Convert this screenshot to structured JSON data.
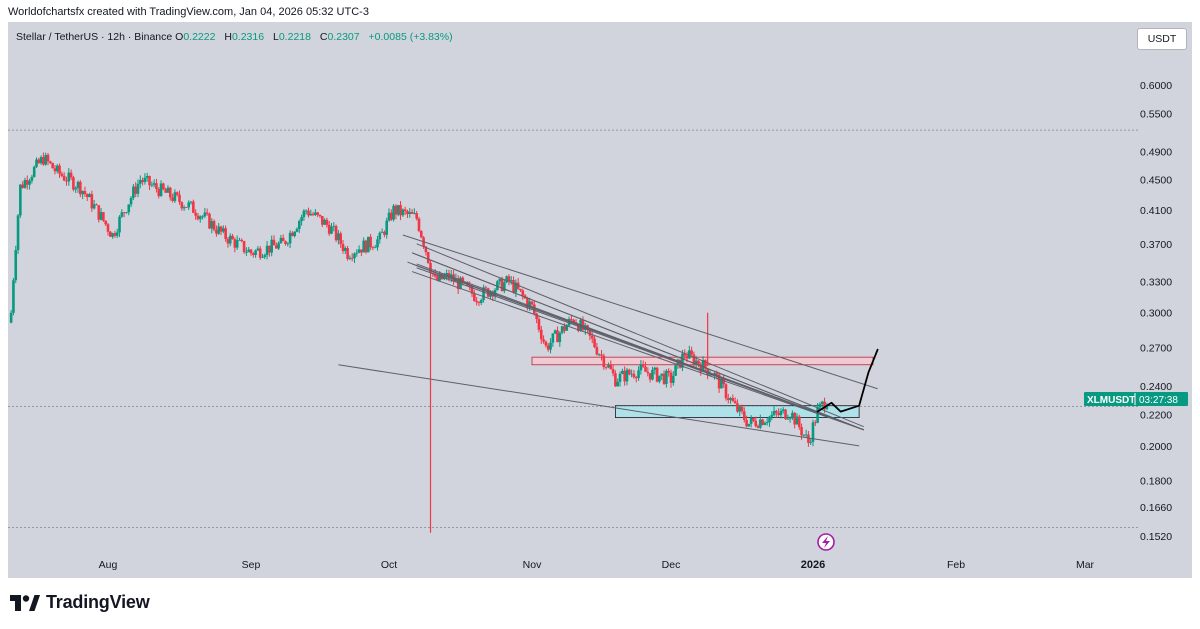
{
  "header": {
    "attribution": "Worldofchartsfx created with TradingView.com, Jan 04, 2026 05:32 UTC-3"
  },
  "legend": {
    "symbol": "Stellar / TetherUS · 12h · Binance",
    "o_label": "O",
    "o_value": "0.2222",
    "h_label": "H",
    "h_value": "0.2316",
    "l_label": "L",
    "l_value": "0.2218",
    "c_label": "C",
    "c_value": "0.2307",
    "change": "+0.0085 (+3.83%)"
  },
  "currency_button": "USDT",
  "price_label": {
    "symbol": "XLMUSDT",
    "countdown": "03:27:38",
    "value": 0.2307
  },
  "brand": {
    "name": "TradingView"
  },
  "colors": {
    "up": "#089981",
    "down": "#f23645",
    "background": "#d1d4dc",
    "line": "#5d606b",
    "zone_pink": "#f7c6cf",
    "zone_cyan": "#a6e3ec",
    "pencil": "#000000"
  },
  "chart_data": {
    "type": "candlestick",
    "y_scale": "log",
    "ylim": [
      0.148,
      0.66
    ],
    "y_ticks": [
      "0.6000",
      "0.5500",
      "0.4900",
      "0.4500",
      "0.4100",
      "0.3700",
      "0.3300",
      "0.3000",
      "0.2700",
      "0.2400",
      "0.2200",
      "0.2000",
      "0.1800",
      "0.1660",
      "0.1520"
    ],
    "x_ticks": [
      {
        "label": "Aug",
        "date": "2025-08-01"
      },
      {
        "label": "Sep",
        "date": "2025-09-01"
      },
      {
        "label": "Oct",
        "date": "2025-10-01"
      },
      {
        "label": "Nov",
        "date": "2025-11-01"
      },
      {
        "label": "Dec",
        "date": "2025-12-01"
      },
      {
        "label": "2026",
        "date": "2026-01-01",
        "bold": true
      },
      {
        "label": "Feb",
        "date": "2026-02-01"
      },
      {
        "label": "Mar",
        "date": "2026-03-01"
      }
    ],
    "start_date": "2025-07-11",
    "key_closes": [
      [
        "2025-07-11",
        0.3
      ],
      [
        "2025-07-13",
        0.44
      ],
      [
        "2025-07-18",
        0.48
      ],
      [
        "2025-07-21",
        0.46
      ],
      [
        "2025-07-26",
        0.44
      ],
      [
        "2025-08-02",
        0.38
      ],
      [
        "2025-08-08",
        0.45
      ],
      [
        "2025-08-14",
        0.43
      ],
      [
        "2025-08-20",
        0.41
      ],
      [
        "2025-08-26",
        0.38
      ],
      [
        "2025-09-01",
        0.36
      ],
      [
        "2025-09-08",
        0.37
      ],
      [
        "2025-09-13",
        0.41
      ],
      [
        "2025-09-18",
        0.39
      ],
      [
        "2025-09-22",
        0.36
      ],
      [
        "2025-09-29",
        0.375
      ],
      [
        "2025-10-02",
        0.41
      ],
      [
        "2025-10-07",
        0.4
      ],
      [
        "2025-10-10",
        0.345
      ],
      [
        "2025-10-11",
        0.33
      ],
      [
        "2025-10-14",
        0.335
      ],
      [
        "2025-10-20",
        0.315
      ],
      [
        "2025-10-27",
        0.33
      ],
      [
        "2025-11-01",
        0.305
      ],
      [
        "2025-11-04",
        0.27
      ],
      [
        "2025-11-10",
        0.295
      ],
      [
        "2025-11-14",
        0.275
      ],
      [
        "2025-11-19",
        0.245
      ],
      [
        "2025-11-24",
        0.252
      ],
      [
        "2025-12-01",
        0.245
      ],
      [
        "2025-12-04",
        0.265
      ],
      [
        "2025-12-10",
        0.25
      ],
      [
        "2025-12-15",
        0.225
      ],
      [
        "2025-12-18",
        0.214
      ],
      [
        "2025-12-22",
        0.218
      ],
      [
        "2025-12-27",
        0.222
      ],
      [
        "2025-12-31",
        0.202
      ],
      [
        "2026-01-02",
        0.222
      ],
      [
        "2026-01-04",
        0.2307
      ]
    ],
    "wicks": [
      {
        "date": "2025-10-10",
        "low": 0.1535,
        "label": "flash-crash wick"
      },
      {
        "date": "2025-12-09",
        "high": 0.3,
        "label": "upper spike wick"
      }
    ],
    "trendlines": [
      {
        "from": [
          "2025-10-04",
          0.38
        ],
        "to": [
          "2026-01-15",
          0.238
        ]
      },
      {
        "from": [
          "2025-10-06",
          0.36
        ],
        "to": [
          "2026-01-12",
          0.21
        ]
      },
      {
        "from": [
          "2025-10-07",
          0.346
        ],
        "to": [
          "2026-01-12",
          0.21
        ]
      },
      {
        "from": [
          "2025-10-06",
          0.36
        ],
        "to": [
          "2026-01-12",
          0.21
        ]
      },
      {
        "from": [
          "2025-10-07",
          0.37
        ],
        "to": [
          "2026-01-12",
          0.212
        ]
      },
      {
        "from": [
          "2025-10-06",
          0.34
        ],
        "to": [
          "2026-01-12",
          0.21
        ]
      },
      {
        "from": [
          "2025-10-07",
          0.344
        ],
        "to": [
          "2026-01-12",
          0.21
        ]
      },
      {
        "from": [
          "2025-10-07",
          0.348
        ],
        "to": [
          "2026-01-12",
          0.21
        ]
      },
      {
        "from": [
          "2025-10-05",
          0.35
        ],
        "to": [
          "2026-01-12",
          0.21
        ]
      },
      {
        "from": [
          "2025-10-06",
          0.348
        ],
        "to": [
          "2026-01-12",
          0.21
        ]
      },
      {
        "from": [
          "2025-09-20",
          0.256
        ],
        "to": [
          "2026-01-11",
          0.2
        ]
      }
    ],
    "zones": [
      {
        "from": "2025-11-01",
        "to": "2026-01-14",
        "top": 0.262,
        "bottom": 0.256,
        "color": "pink"
      },
      {
        "from": "2025-11-19",
        "to": "2026-01-11",
        "top": 0.226,
        "bottom": 0.218,
        "color": "cyan"
      }
    ],
    "hlines": [
      0.523,
      0.2255,
      0.156
    ],
    "projection": [
      [
        "2026-01-02",
        0.222
      ],
      [
        "2026-01-05",
        0.228
      ],
      [
        "2026-01-07",
        0.222
      ],
      [
        "2026-01-11",
        0.226
      ],
      [
        "2026-01-13",
        0.25
      ],
      [
        "2026-01-15",
        0.268
      ]
    ]
  }
}
